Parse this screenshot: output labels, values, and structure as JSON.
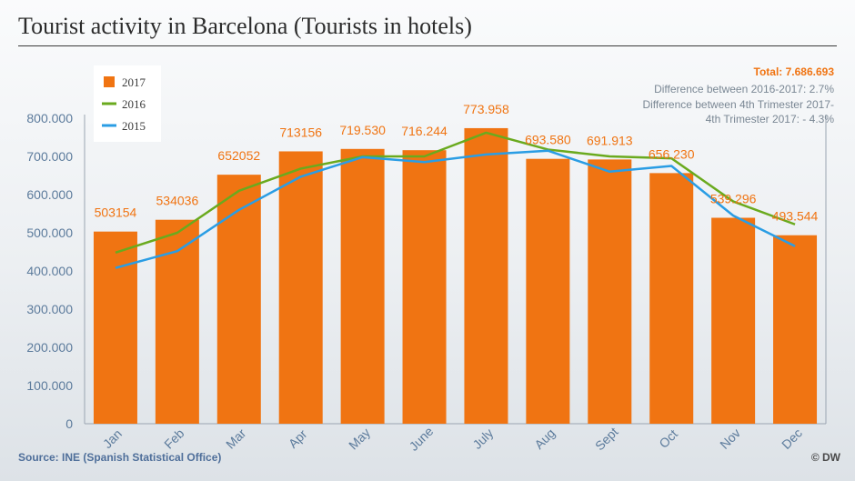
{
  "header": {
    "title": "Tourist activity in Barcelona (Tourists in hotels)"
  },
  "footer": {
    "source": "Source: INE (Spanish Statistical Office)",
    "copyright": "© DW"
  },
  "notes": {
    "total": "Total: 7.686.693",
    "line1": "Difference between 2016-2017: 2.7%",
    "line2": "Difference between 4th Trimester 2017-",
    "line3": "4th Trimester 2017: - 4.3%"
  },
  "colors": {
    "bars_2017": "#f07412",
    "line_2016": "#6aaa1e",
    "line_2015": "#2a9de4",
    "label_text": "#f07412",
    "axis_text": "#5c7b9c",
    "total_text": "#f07412"
  },
  "chart_data": {
    "type": "bar",
    "title": "Tourist activity in Barcelona (Tourists in hotels)",
    "xlabel": "",
    "ylabel": "",
    "ylim": [
      0,
      800000
    ],
    "yticks": [
      0,
      100000,
      200000,
      300000,
      400000,
      500000,
      600000,
      700000,
      800000
    ],
    "ytick_labels": [
      "0",
      "100.000",
      "200.000",
      "300.000",
      "400.000",
      "500.000",
      "600.000",
      "700.000",
      "800.000"
    ],
    "grid": false,
    "legend_position": "top-left",
    "categories": [
      "Jan",
      "Feb",
      "Mar",
      "Apr",
      "May",
      "June",
      "July",
      "Aug",
      "Sept",
      "Oct",
      "Nov",
      "Dec"
    ],
    "series": [
      {
        "name": "2017",
        "type": "bar",
        "values": [
          503154,
          534036,
          652052,
          713156,
          719530,
          716244,
          773958,
          693580,
          691913,
          656230,
          539296,
          493544
        ],
        "labels": [
          "503154",
          "534036",
          "652052",
          "713156",
          "719.530",
          "716.244",
          "773.958",
          "693.580",
          "691.913",
          "656.230",
          "539.296",
          "493.544"
        ]
      },
      {
        "name": "2016",
        "type": "line",
        "values": [
          448000,
          500000,
          610000,
          668000,
          700000,
          700000,
          762000,
          718000,
          700000,
          695000,
          582000,
          522000
        ]
      },
      {
        "name": "2015",
        "type": "line",
        "values": [
          408000,
          452000,
          560000,
          647000,
          698000,
          685000,
          705000,
          715000,
          660000,
          675000,
          545000,
          465000
        ]
      }
    ]
  }
}
